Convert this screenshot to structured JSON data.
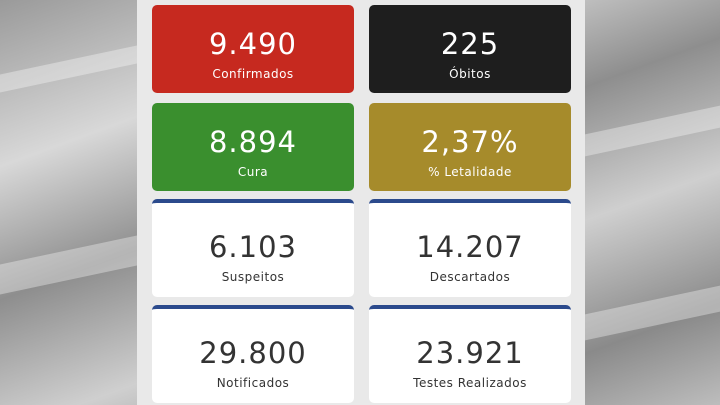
{
  "cards": [
    {
      "value": "9.490",
      "label": "Confirmados"
    },
    {
      "value": "225",
      "label": "Óbitos"
    },
    {
      "value": "8.894",
      "label": "Cura"
    },
    {
      "value": "2,37%",
      "label": "% Letalidade"
    },
    {
      "value": "6.103",
      "label": "Suspeitos"
    },
    {
      "value": "14.207",
      "label": "Descartados"
    },
    {
      "value": "29.800",
      "label": "Notificados"
    },
    {
      "value": "23.921",
      "label": "Testes Realizados"
    }
  ]
}
